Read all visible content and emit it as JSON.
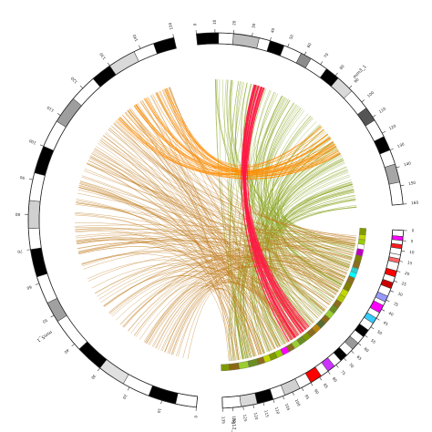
{
  "chromosomes": [
    {
      "id": "chr3",
      "label": "mm3_1",
      "span": 160,
      "tick_step": 10,
      "bands": [
        [
          0,
          12,
          "#000000"
        ],
        [
          12,
          20,
          "#ffffff"
        ],
        [
          20,
          34,
          "#bdbdbd"
        ],
        [
          34,
          40,
          "#ffffff"
        ],
        [
          40,
          48,
          "#000000"
        ],
        [
          48,
          58,
          "#ffffff"
        ],
        [
          58,
          64,
          "#8c8c8c"
        ],
        [
          64,
          74,
          "#ffffff"
        ],
        [
          74,
          82,
          "#000000"
        ],
        [
          82,
          92,
          "#d9d9d9"
        ],
        [
          92,
          104,
          "#ffffff"
        ],
        [
          104,
          112,
          "#555555"
        ],
        [
          112,
          122,
          "#ffffff"
        ],
        [
          122,
          130,
          "#000000"
        ],
        [
          130,
          138,
          "#ffffff"
        ],
        [
          138,
          148,
          "#a6a6a6"
        ],
        [
          148,
          160,
          "#ffffff"
        ]
      ]
    },
    {
      "id": "chr12",
      "label": "hg12_1",
      "span": 135,
      "tick_step": 5,
      "bands": [
        [
          0,
          3,
          "#ffffff"
        ],
        [
          3,
          5,
          "#ff00ff"
        ],
        [
          5,
          7,
          "#ffffff"
        ],
        [
          7,
          9,
          "#ff1a1a"
        ],
        [
          9,
          12,
          "#ffffff"
        ],
        [
          12,
          14,
          "#ffffff"
        ],
        [
          14,
          16,
          "#ff6666"
        ],
        [
          16,
          20,
          "#ffffff"
        ],
        [
          20,
          23,
          "#ff0000"
        ],
        [
          23,
          26,
          "#ffffff"
        ],
        [
          26,
          29,
          "#cc0000"
        ],
        [
          29,
          33,
          "#ffffff"
        ],
        [
          33,
          36,
          "#9999ff"
        ],
        [
          36,
          38,
          "#ffffff"
        ],
        [
          38,
          42,
          "#ff00ff"
        ],
        [
          42,
          45,
          "#ffffff"
        ],
        [
          45,
          48,
          "#33ccff"
        ],
        [
          48,
          52,
          "#ffffff"
        ],
        [
          52,
          56,
          "#000000"
        ],
        [
          56,
          60,
          "#ffffff"
        ],
        [
          60,
          64,
          "#999999"
        ],
        [
          64,
          68,
          "#ffffff"
        ],
        [
          68,
          72,
          "#000000"
        ],
        [
          72,
          76,
          "#ffffff"
        ],
        [
          76,
          80,
          "#cc33ff"
        ],
        [
          80,
          84,
          "#ffffff"
        ],
        [
          84,
          90,
          "#ff0000"
        ],
        [
          90,
          96,
          "#ffffff"
        ],
        [
          96,
          104,
          "#d0d0d0"
        ],
        [
          104,
          110,
          "#ffffff"
        ],
        [
          110,
          118,
          "#000000"
        ],
        [
          118,
          126,
          "#d9d9d9"
        ],
        [
          126,
          135,
          "#ffffff"
        ]
      ]
    },
    {
      "id": "chr5",
      "label": "mm5_1",
      "span": 150,
      "tick_step": 10,
      "bands": [
        [
          0,
          6,
          "#ffffff"
        ],
        [
          6,
          14,
          "#000000"
        ],
        [
          14,
          22,
          "#ffffff"
        ],
        [
          22,
          30,
          "#e0e0e0"
        ],
        [
          30,
          38,
          "#000000"
        ],
        [
          38,
          48,
          "#ffffff"
        ],
        [
          48,
          54,
          "#a0a0a0"
        ],
        [
          54,
          62,
          "#ffffff"
        ],
        [
          62,
          70,
          "#000000"
        ],
        [
          70,
          76,
          "#ffffff"
        ],
        [
          76,
          84,
          "#d0d0d0"
        ],
        [
          84,
          92,
          "#ffffff"
        ],
        [
          92,
          100,
          "#000000"
        ],
        [
          100,
          108,
          "#ffffff"
        ],
        [
          108,
          116,
          "#9e9e9e"
        ],
        [
          116,
          124,
          "#ffffff"
        ],
        [
          124,
          130,
          "#000000"
        ],
        [
          130,
          138,
          "#d9d9d9"
        ],
        [
          138,
          144,
          "#ffffff"
        ],
        [
          144,
          150,
          "#000000"
        ]
      ]
    }
  ],
  "inner_track": {
    "chrom": "chr12",
    "bands": [
      [
        0,
        4,
        "#7f9a00"
      ],
      [
        4,
        7,
        "#c3d600"
      ],
      [
        7,
        10,
        "#99cc00"
      ],
      [
        10,
        13,
        "#ffffff"
      ],
      [
        13,
        17,
        "#c000c0"
      ],
      [
        17,
        21,
        "#808000"
      ],
      [
        21,
        25,
        "#8c6d1f"
      ],
      [
        25,
        28,
        "#33cccc"
      ],
      [
        28,
        31,
        "#00ffff"
      ],
      [
        31,
        35,
        "#8c6d1f"
      ],
      [
        35,
        40,
        "#7f7f00"
      ],
      [
        40,
        44,
        "#c3d600"
      ],
      [
        44,
        48,
        "#b0c800"
      ],
      [
        48,
        52,
        "#8c6d1f"
      ],
      [
        52,
        56,
        "#6b8e23"
      ],
      [
        56,
        60,
        "#9acd32"
      ],
      [
        60,
        64,
        "#8b6914"
      ],
      [
        64,
        68,
        "#556b2f"
      ],
      [
        68,
        72,
        "#b8860b"
      ],
      [
        72,
        76,
        "#8c6d1f"
      ],
      [
        76,
        80,
        "#7f9a00"
      ],
      [
        80,
        84,
        "#6b8e23"
      ],
      [
        84,
        88,
        "#9acd32"
      ],
      [
        88,
        92,
        "#8c6d1f"
      ],
      [
        92,
        96,
        "#ff00ff"
      ],
      [
        96,
        100,
        "#99cc00"
      ],
      [
        100,
        104,
        "#7f9a00"
      ],
      [
        104,
        108,
        "#c3d600"
      ],
      [
        108,
        112,
        "#8c6d1f"
      ],
      [
        112,
        118,
        "#6b8e23"
      ],
      [
        118,
        124,
        "#9acd32"
      ],
      [
        124,
        130,
        "#8b6914"
      ],
      [
        130,
        135,
        "#7f9a00"
      ]
    ]
  },
  "link_groups": [
    {
      "name": "chr3-chr12",
      "color": "#8aa624"
    },
    {
      "name": "chr5-chr12",
      "color": "#c07a1c"
    },
    {
      "name": "chr5-chr3",
      "color": "#ff8c00"
    },
    {
      "name": "chr3-chr12-red",
      "color": "#ff1744"
    }
  ]
}
